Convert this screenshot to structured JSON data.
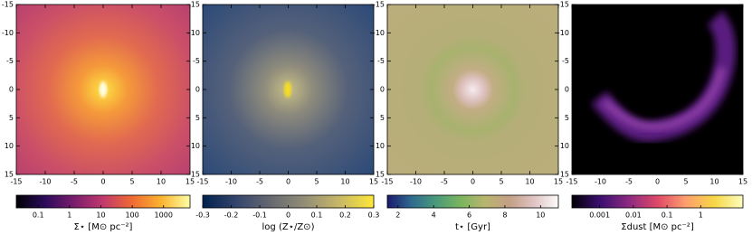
{
  "chart_data": [
    {
      "type": "image",
      "xlim": [
        -15,
        15
      ],
      "ylim": [
        -15,
        15
      ],
      "y_inverted": true,
      "xticks": [
        -15,
        -10,
        -5,
        0,
        5,
        10,
        15
      ],
      "yticks": [
        -15,
        -10,
        -5,
        0,
        5,
        10,
        15
      ],
      "colorbar": {
        "label": "Σ⋆ [M⊙ pc⁻²]",
        "scale": "log",
        "clim": [
          0.02,
          7000
        ],
        "ticks": [
          0.1,
          1,
          10,
          100,
          1000
        ],
        "colormap": [
          "#000004",
          "#2c0b5a",
          "#7a1d6d",
          "#c1396d",
          "#ef6a32",
          "#fbb32f",
          "#fcffa4"
        ]
      }
    },
    {
      "type": "image",
      "xlim": [
        -15,
        15
      ],
      "ylim": [
        -15,
        15
      ],
      "y_inverted": true,
      "xticks": [
        -15,
        -10,
        -5,
        0,
        5,
        10,
        15
      ],
      "yticks": [
        -15,
        -10,
        -5,
        0,
        5,
        10,
        15
      ],
      "colorbar": {
        "label": "log (Z⋆/Z⊙)",
        "scale": "linear",
        "clim": [
          -0.3,
          0.3
        ],
        "ticks": [
          -0.3,
          -0.2,
          -0.1,
          0,
          0.1,
          0.2,
          0.3
        ],
        "colormap": [
          "#00224e",
          "#35456c",
          "#666970",
          "#948e77",
          "#c8b866",
          "#fee838"
        ]
      }
    },
    {
      "type": "image",
      "xlim": [
        -15,
        15
      ],
      "ylim": [
        -15,
        15
      ],
      "y_inverted": true,
      "xticks": [
        -15,
        -10,
        -5,
        0,
        5,
        10,
        15
      ],
      "yticks": [
        -15,
        -10,
        -5,
        0,
        5,
        10,
        15
      ],
      "colorbar": {
        "label": "t⋆ [Gyr]",
        "scale": "linear",
        "clim": [
          1.4,
          11
        ],
        "ticks": [
          2,
          4,
          6,
          8,
          10
        ],
        "colormap": [
          "#1a1a6e",
          "#2f6b8f",
          "#4a9a7a",
          "#7ab55e",
          "#b9b56e",
          "#c39f86",
          "#e0c3c3",
          "#fdfbfb"
        ]
      }
    },
    {
      "type": "image",
      "xlim": [
        -15,
        15
      ],
      "ylim": [
        -15,
        15
      ],
      "y_inverted": true,
      "xticks": [
        -15,
        -10,
        -5,
        0,
        5,
        10,
        15
      ],
      "yticks": [
        -15,
        -10,
        -5,
        0,
        5,
        10,
        15
      ],
      "colorbar": {
        "label": "Σdust [M⊙ pc⁻²]",
        "scale": "log",
        "clim": [
          0.00015,
          18
        ],
        "ticks": [
          0.001,
          0.01,
          0.1,
          1
        ],
        "colormap": [
          "#000004",
          "#3b0f70",
          "#8c2981",
          "#de4968",
          "#fe9f6d",
          "#f6d746",
          "#fcfdbf"
        ]
      }
    }
  ]
}
